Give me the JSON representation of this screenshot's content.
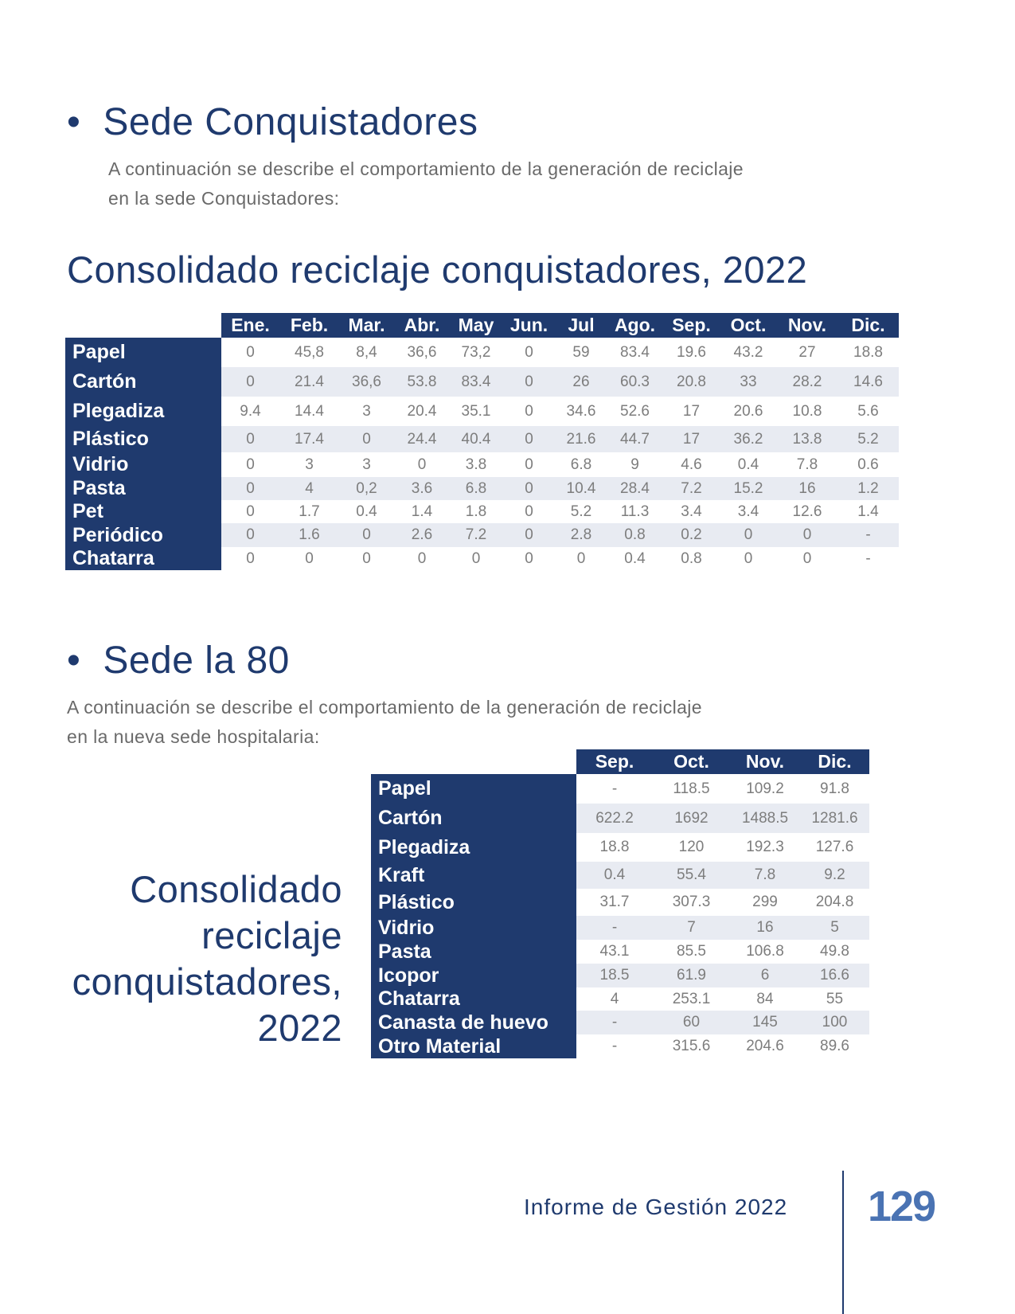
{
  "section1": {
    "bullet": "•",
    "title": "Sede Conquistadores",
    "para_line1": "A continuación se describe el comportamiento de la generación de reciclaje",
    "para_line2": "en la sede Conquistadores:",
    "table_title": "Consolidado reciclaje conquistadores, 2022",
    "table": {
      "columns": [
        "Ene.",
        "Feb.",
        "Mar.",
        "Abr.",
        "May",
        "Jun.",
        "Jul",
        "Ago.",
        "Sep.",
        "Oct.",
        "Nov.",
        "Dic."
      ],
      "rows": [
        {
          "label": "Papel",
          "values": [
            "0",
            "45,8",
            "8,4",
            "36,6",
            "73,2",
            "0",
            "59",
            "83.4",
            "19.6",
            "43.2",
            "27",
            "18.8"
          ]
        },
        {
          "label": "Cartón",
          "values": [
            "0",
            "21.4",
            "36,6",
            "53.8",
            "83.4",
            "0",
            "26",
            "60.3",
            "20.8",
            "33",
            "28.2",
            "14.6"
          ]
        },
        {
          "label": "Plegadiza",
          "values": [
            "9.4",
            "14.4",
            "3",
            "20.4",
            "35.1",
            "0",
            "34.6",
            "52.6",
            "17",
            "20.6",
            "10.8",
            "5.6"
          ]
        },
        {
          "label": "Plástico",
          "values": [
            "0",
            "17.4",
            "0",
            "24.4",
            "40.4",
            "0",
            "21.6",
            "44.7",
            "17",
            "36.2",
            "13.8",
            "5.2"
          ]
        },
        {
          "label": "Vidrio",
          "values": [
            "0",
            "3",
            "3",
            "0",
            "3.8",
            "0",
            "6.8",
            "9",
            "4.6",
            "0.4",
            "7.8",
            "0.6"
          ]
        },
        {
          "label": "Pasta",
          "values": [
            "0",
            "4",
            "0,2",
            "3.6",
            "6.8",
            "0",
            "10.4",
            "28.4",
            "7.2",
            "15.2",
            "16",
            "1.2"
          ]
        },
        {
          "label": "Pet",
          "values": [
            "0",
            "1.7",
            "0.4",
            "1.4",
            "1.8",
            "0",
            "5.2",
            "11.3",
            "3.4",
            "3.4",
            "12.6",
            "1.4"
          ]
        },
        {
          "label": "Periódico",
          "values": [
            "0",
            "1.6",
            "0",
            "2.6",
            "7.2",
            "0",
            "2.8",
            "0.8",
            "0.2",
            "0",
            "0",
            "-"
          ]
        },
        {
          "label": "Chatarra",
          "values": [
            "0",
            "0",
            "0",
            "0",
            "0",
            "0",
            "0",
            "0.4",
            "0.8",
            "0",
            "0",
            "-"
          ]
        }
      ]
    }
  },
  "section2": {
    "bullet": "•",
    "title": "Sede la 80",
    "para_line1": "A continuación se describe el comportamiento de la generación de reciclaje",
    "para_line2": "en la nueva sede hospitalaria:",
    "side_title_lines": [
      "Consolidado",
      "reciclaje",
      "conquistadores,",
      "2022"
    ],
    "table": {
      "columns": [
        "Sep.",
        "Oct.",
        "Nov.",
        "Dic."
      ],
      "rows": [
        {
          "label": "Papel",
          "values": [
            "-",
            "118.5",
            "109.2",
            "91.8"
          ]
        },
        {
          "label": "Cartón",
          "values": [
            "622.2",
            "1692",
            "1488.5",
            "1281.6"
          ]
        },
        {
          "label": "Plegadiza",
          "values": [
            "18.8",
            "120",
            "192.3",
            "127.6"
          ]
        },
        {
          "label": "Kraft",
          "values": [
            "0.4",
            "55.4",
            "7.8",
            "9.2"
          ]
        },
        {
          "label": "Plástico",
          "values": [
            "31.7",
            "307.3",
            "299",
            "204.8"
          ]
        },
        {
          "label": "Vidrio",
          "values": [
            "-",
            "7",
            "16",
            "5"
          ]
        },
        {
          "label": "Pasta",
          "values": [
            "43.1",
            "85.5",
            "106.8",
            "49.8"
          ]
        },
        {
          "label": "Icopor",
          "values": [
            "18.5",
            "61.9",
            "6",
            "16.6"
          ]
        },
        {
          "label": "Chatarra",
          "values": [
            "4",
            "253.1",
            "84",
            "55"
          ]
        },
        {
          "label": "Canasta de huevo",
          "values": [
            "-",
            "60",
            "145",
            "100"
          ]
        },
        {
          "label": "Otro Material",
          "values": [
            "-",
            "315.6",
            "204.6",
            "89.6"
          ]
        }
      ]
    }
  },
  "footer": {
    "report_title": "Informe de Gestión 2022",
    "page_number": "129"
  },
  "colors": {
    "navy": "#1f3a6e",
    "row_shade": "#e8ebf2",
    "value_text": "#7d7d7d",
    "page_number": "#4a73b3"
  }
}
